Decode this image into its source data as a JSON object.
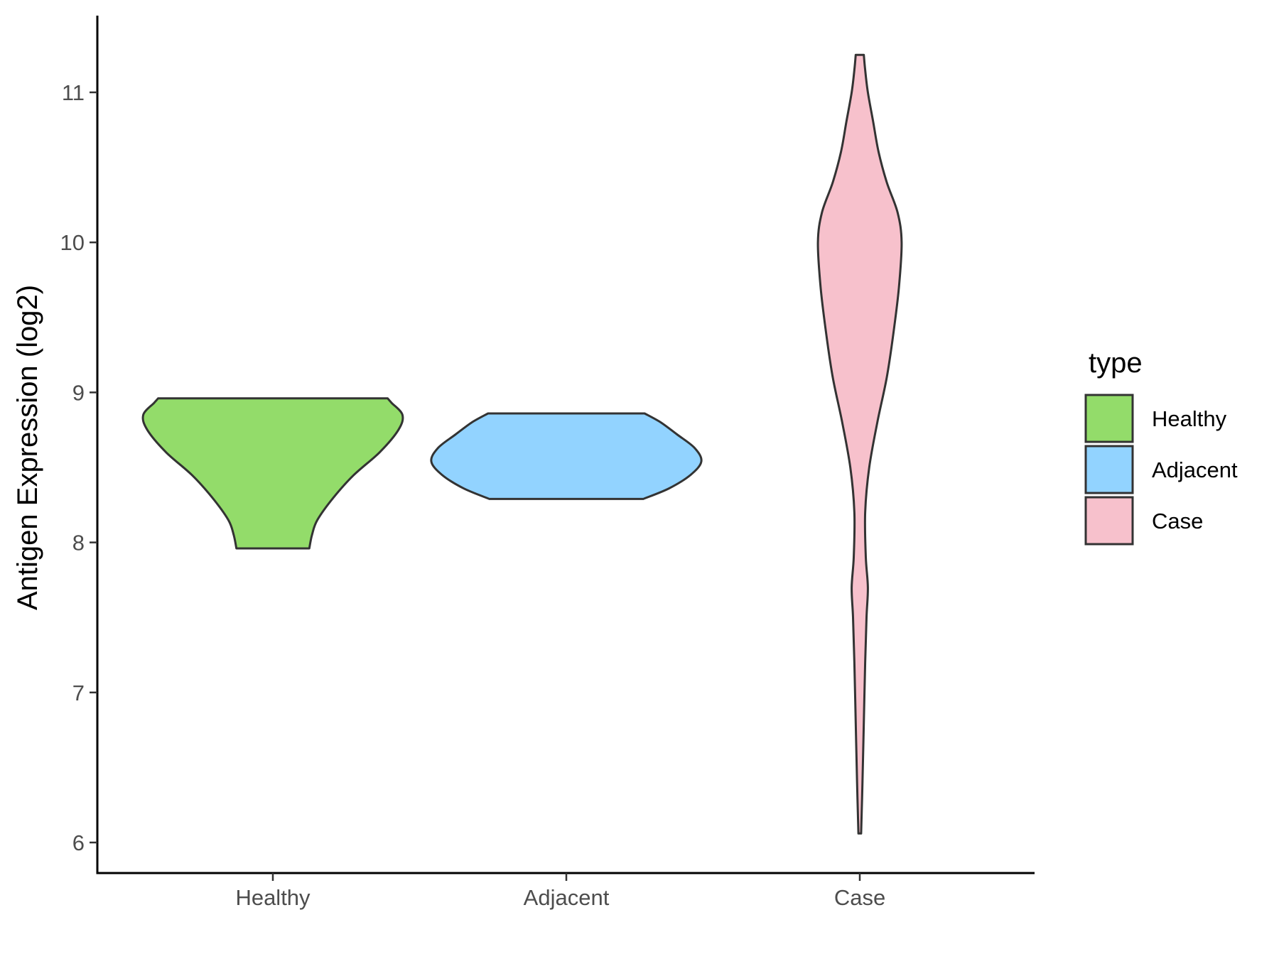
{
  "chart_data": {
    "type": "violin",
    "title": "",
    "xlabel": "",
    "ylabel": "Antigen Expression (log2)",
    "ylim": [
      5.8,
      11.5
    ],
    "yticks": [
      6,
      7,
      8,
      9,
      10,
      11
    ],
    "categories": [
      "Healthy",
      "Adjacent",
      "Case"
    ],
    "grid": false,
    "legend": {
      "title": "type",
      "placement": "right",
      "entries": [
        "Healthy",
        "Adjacent",
        "Case"
      ]
    },
    "colors": {
      "Healthy": "#93dc6a",
      "Adjacent": "#92d3ff",
      "Case": "#f7c1cc",
      "outline": "#333333"
    },
    "series": [
      {
        "category": "Healthy",
        "y_min": 7.96,
        "y_max": 8.96,
        "density_profile": [
          [
            7.96,
            0.27
          ],
          [
            8.05,
            0.29
          ],
          [
            8.15,
            0.33
          ],
          [
            8.3,
            0.45
          ],
          [
            8.45,
            0.6
          ],
          [
            8.6,
            0.79
          ],
          [
            8.75,
            0.93
          ],
          [
            8.85,
            0.96
          ],
          [
            8.93,
            0.88
          ],
          [
            8.96,
            0.85
          ]
        ]
      },
      {
        "category": "Adjacent",
        "y_min": 8.29,
        "y_max": 8.86,
        "density_profile": [
          [
            8.29,
            0.57
          ],
          [
            8.36,
            0.76
          ],
          [
            8.45,
            0.92
          ],
          [
            8.54,
            1.0
          ],
          [
            8.63,
            0.95
          ],
          [
            8.72,
            0.82
          ],
          [
            8.8,
            0.7
          ],
          [
            8.86,
            0.58
          ]
        ]
      },
      {
        "category": "Case",
        "y_min": 6.06,
        "y_max": 11.25,
        "density_profile": [
          [
            6.06,
            0.01
          ],
          [
            6.4,
            0.02
          ],
          [
            6.8,
            0.03
          ],
          [
            7.2,
            0.04
          ],
          [
            7.5,
            0.05
          ],
          [
            7.7,
            0.06
          ],
          [
            7.9,
            0.045
          ],
          [
            8.2,
            0.04
          ],
          [
            8.5,
            0.07
          ],
          [
            8.8,
            0.13
          ],
          [
            9.1,
            0.2
          ],
          [
            9.4,
            0.25
          ],
          [
            9.7,
            0.29
          ],
          [
            10.0,
            0.31
          ],
          [
            10.2,
            0.28
          ],
          [
            10.4,
            0.2
          ],
          [
            10.6,
            0.14
          ],
          [
            10.8,
            0.1
          ],
          [
            11.0,
            0.06
          ],
          [
            11.15,
            0.04
          ],
          [
            11.25,
            0.03
          ]
        ]
      }
    ]
  }
}
